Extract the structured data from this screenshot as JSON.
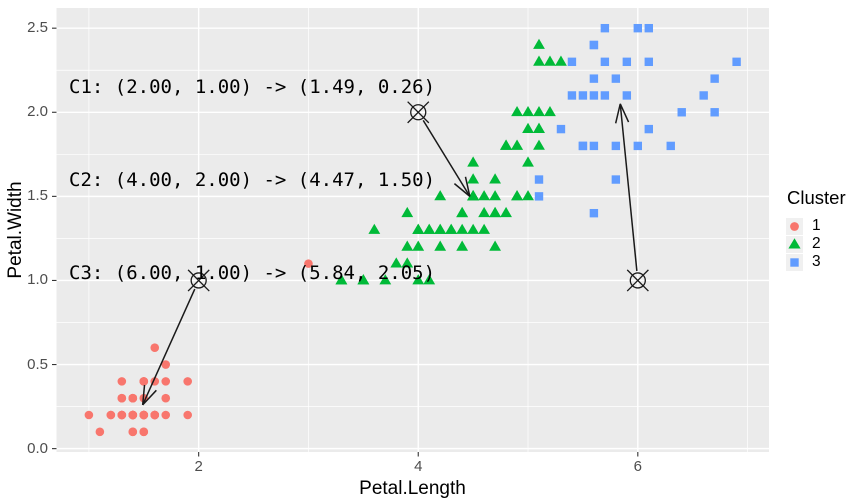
{
  "annotation": {
    "lines": [
      "C1: (2.00, 1.00) -> (1.49, 0.26)",
      "C2: (4.00, 2.00) -> (4.47, 1.50)",
      "C3: (6.00, 1.00) -> (5.84, 2.05)"
    ]
  },
  "axes": {
    "x_label": "Petal.Length",
    "y_label": "Petal.Width"
  },
  "legend": {
    "title": "Cluster",
    "items": [
      {
        "label": "1",
        "shape": "circle",
        "color": "#F8766D"
      },
      {
        "label": "2",
        "shape": "triangle",
        "color": "#00BA38"
      },
      {
        "label": "3",
        "shape": "square",
        "color": "#619CFF"
      }
    ]
  },
  "colors": {
    "panel_bg": "#EBEBEB",
    "grid": "#FFFFFF",
    "tick_text": "#4D4D4D",
    "axis_text": "#000000",
    "annotation_stroke": "#1A1A1A",
    "cluster1": "#F8766D",
    "cluster2": "#00BA38",
    "cluster3": "#619CFF"
  },
  "chart_data": {
    "type": "scatter",
    "title": "",
    "xlabel": "Petal.Length",
    "ylabel": "Petal.Width",
    "xlim": [
      0.705,
      7.195
    ],
    "ylim": [
      -0.02,
      2.62
    ],
    "grid": true,
    "legend_position": "right",
    "x_major_ticks": [
      2,
      4,
      6
    ],
    "x_minor_ticks": [
      1,
      3,
      5,
      7
    ],
    "x_tick_labels": [
      "2",
      "4",
      "6"
    ],
    "y_major_ticks": [
      0,
      0.5,
      1,
      1.5,
      2,
      2.5
    ],
    "y_minor_ticks": [
      0.25,
      0.75,
      1.25,
      1.75,
      2.25
    ],
    "y_tick_labels": [
      "0.0",
      "0.5",
      "1.0",
      "1.5",
      "2.0",
      "2.5"
    ],
    "centroids": [
      {
        "id": "C1",
        "initial": [
          2.0,
          1.0
        ],
        "final": [
          1.49,
          0.26
        ]
      },
      {
        "id": "C2",
        "initial": [
          4.0,
          2.0
        ],
        "final": [
          4.47,
          1.5
        ]
      },
      {
        "id": "C3",
        "initial": [
          6.0,
          1.0
        ],
        "final": [
          5.84,
          2.05
        ]
      }
    ],
    "series": [
      {
        "name": "1",
        "shape": "circle",
        "color": "#F8766D",
        "points": [
          [
            1.4,
            0.2
          ],
          [
            1.4,
            0.2
          ],
          [
            1.3,
            0.2
          ],
          [
            1.5,
            0.2
          ],
          [
            1.4,
            0.2
          ],
          [
            1.7,
            0.4
          ],
          [
            1.4,
            0.3
          ],
          [
            1.5,
            0.2
          ],
          [
            1.4,
            0.2
          ],
          [
            1.5,
            0.1
          ],
          [
            1.5,
            0.2
          ],
          [
            1.6,
            0.2
          ],
          [
            1.4,
            0.1
          ],
          [
            1.1,
            0.1
          ],
          [
            1.2,
            0.2
          ],
          [
            1.5,
            0.4
          ],
          [
            1.3,
            0.4
          ],
          [
            1.4,
            0.3
          ],
          [
            1.7,
            0.3
          ],
          [
            1.5,
            0.3
          ],
          [
            1.7,
            0.2
          ],
          [
            1.5,
            0.4
          ],
          [
            1.0,
            0.2
          ],
          [
            1.7,
            0.5
          ],
          [
            1.9,
            0.2
          ],
          [
            1.6,
            0.2
          ],
          [
            1.6,
            0.4
          ],
          [
            1.5,
            0.2
          ],
          [
            1.4,
            0.2
          ],
          [
            1.6,
            0.2
          ],
          [
            1.6,
            0.2
          ],
          [
            1.5,
            0.4
          ],
          [
            1.5,
            0.1
          ],
          [
            1.4,
            0.2
          ],
          [
            1.5,
            0.2
          ],
          [
            1.2,
            0.2
          ],
          [
            1.3,
            0.2
          ],
          [
            1.4,
            0.1
          ],
          [
            1.3,
            0.2
          ],
          [
            1.5,
            0.2
          ],
          [
            1.3,
            0.3
          ],
          [
            1.3,
            0.3
          ],
          [
            1.3,
            0.2
          ],
          [
            1.6,
            0.6
          ],
          [
            1.9,
            0.4
          ],
          [
            1.4,
            0.3
          ],
          [
            1.6,
            0.2
          ],
          [
            1.4,
            0.2
          ],
          [
            1.5,
            0.2
          ],
          [
            1.4,
            0.2
          ],
          [
            3.0,
            1.1
          ]
        ]
      },
      {
        "name": "2",
        "shape": "triangle",
        "color": "#00BA38",
        "points": [
          [
            4.7,
            1.4
          ],
          [
            4.5,
            1.5
          ],
          [
            4.9,
            1.5
          ],
          [
            4.0,
            1.3
          ],
          [
            4.6,
            1.5
          ],
          [
            4.5,
            1.3
          ],
          [
            4.7,
            1.6
          ],
          [
            3.3,
            1.0
          ],
          [
            4.6,
            1.3
          ],
          [
            3.9,
            1.4
          ],
          [
            3.5,
            1.0
          ],
          [
            4.2,
            1.5
          ],
          [
            4.0,
            1.0
          ],
          [
            4.7,
            1.4
          ],
          [
            3.6,
            1.3
          ],
          [
            4.4,
            1.4
          ],
          [
            4.5,
            1.5
          ],
          [
            4.1,
            1.0
          ],
          [
            4.5,
            1.5
          ],
          [
            3.9,
            1.1
          ],
          [
            4.8,
            1.8
          ],
          [
            4.0,
            1.3
          ],
          [
            4.9,
            1.5
          ],
          [
            4.7,
            1.2
          ],
          [
            4.3,
            1.3
          ],
          [
            4.4,
            1.4
          ],
          [
            4.8,
            1.4
          ],
          [
            5.0,
            1.7
          ],
          [
            4.5,
            1.5
          ],
          [
            3.5,
            1.0
          ],
          [
            3.8,
            1.1
          ],
          [
            3.7,
            1.0
          ],
          [
            3.9,
            1.2
          ],
          [
            4.5,
            1.5
          ],
          [
            4.5,
            1.6
          ],
          [
            4.7,
            1.5
          ],
          [
            4.4,
            1.3
          ],
          [
            4.1,
            1.3
          ],
          [
            4.0,
            1.3
          ],
          [
            4.4,
            1.2
          ],
          [
            4.6,
            1.4
          ],
          [
            4.0,
            1.2
          ],
          [
            3.3,
            1.0
          ],
          [
            4.2,
            1.3
          ],
          [
            4.2,
            1.2
          ],
          [
            4.2,
            1.3
          ],
          [
            4.3,
            1.3
          ],
          [
            4.1,
            1.3
          ],
          [
            5.1,
            1.9
          ],
          [
            4.5,
            1.7
          ],
          [
            5.1,
            2.0
          ],
          [
            5.0,
            2.0
          ],
          [
            5.1,
            2.4
          ],
          [
            5.3,
            2.3
          ],
          [
            5.0,
            1.5
          ],
          [
            4.9,
            2.0
          ],
          [
            4.9,
            1.8
          ],
          [
            4.8,
            1.8
          ],
          [
            4.9,
            1.8
          ],
          [
            4.8,
            1.8
          ],
          [
            5.1,
            2.3
          ],
          [
            5.1,
            1.9
          ],
          [
            5.2,
            2.3
          ],
          [
            5.0,
            1.9
          ],
          [
            5.2,
            2.0
          ],
          [
            5.1,
            1.8
          ]
        ]
      },
      {
        "name": "3",
        "shape": "square",
        "color": "#619CFF",
        "points": [
          [
            5.1,
            1.6
          ],
          [
            6.0,
            2.5
          ],
          [
            5.9,
            2.1
          ],
          [
            5.6,
            1.8
          ],
          [
            5.8,
            2.2
          ],
          [
            6.6,
            2.1
          ],
          [
            6.3,
            1.8
          ],
          [
            5.8,
            1.8
          ],
          [
            6.1,
            2.5
          ],
          [
            5.3,
            1.9
          ],
          [
            5.5,
            2.1
          ],
          [
            5.5,
            1.8
          ],
          [
            6.7,
            2.2
          ],
          [
            6.9,
            2.3
          ],
          [
            5.7,
            2.3
          ],
          [
            6.7,
            2.0
          ],
          [
            5.7,
            2.1
          ],
          [
            6.0,
            1.8
          ],
          [
            5.6,
            2.1
          ],
          [
            5.8,
            1.6
          ],
          [
            6.1,
            1.9
          ],
          [
            6.4,
            2.0
          ],
          [
            5.6,
            2.2
          ],
          [
            5.1,
            1.5
          ],
          [
            5.6,
            1.4
          ],
          [
            6.1,
            2.3
          ],
          [
            5.6,
            2.4
          ],
          [
            5.5,
            1.8
          ],
          [
            5.4,
            2.1
          ],
          [
            5.6,
            2.4
          ],
          [
            5.9,
            2.3
          ],
          [
            5.7,
            2.5
          ],
          [
            5.4,
            2.3
          ]
        ]
      }
    ]
  }
}
